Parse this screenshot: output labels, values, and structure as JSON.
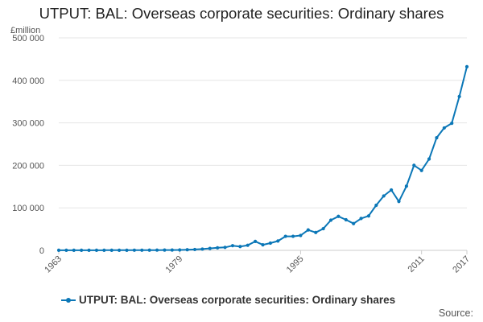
{
  "chart_data": {
    "type": "line",
    "title": "UTPUT: BAL: Overseas corporate securities: Ordinary shares",
    "unit_label": "£million",
    "ylim": [
      0,
      500000
    ],
    "yticks": [
      0,
      100000,
      200000,
      300000,
      400000,
      500000
    ],
    "ytick_labels": [
      "0",
      "100 000",
      "200 000",
      "300 000",
      "400 000",
      "500 000"
    ],
    "xlim": [
      1963,
      2017
    ],
    "xticks": [
      1963,
      1979,
      1995,
      2011,
      2017
    ],
    "xtick_labels": [
      "1963",
      "1979",
      "1995",
      "2011",
      "2017"
    ],
    "grid": true,
    "legend_position": "bottom",
    "series": [
      {
        "name": "UTPUT: BAL: Overseas corporate securities: Ordinary shares",
        "color": "#0b77b7",
        "x": [
          1963,
          1964,
          1965,
          1966,
          1967,
          1968,
          1969,
          1970,
          1971,
          1972,
          1973,
          1974,
          1975,
          1976,
          1977,
          1978,
          1979,
          1980,
          1981,
          1982,
          1983,
          1984,
          1985,
          1986,
          1987,
          1988,
          1989,
          1990,
          1991,
          1992,
          1993,
          1994,
          1995,
          1996,
          1997,
          1998,
          1999,
          2000,
          2001,
          2002,
          2003,
          2004,
          2005,
          2006,
          2007,
          2008,
          2009,
          2010,
          2011,
          2012,
          2013,
          2014,
          2015,
          2016,
          2017
        ],
        "values": [
          200,
          200,
          200,
          200,
          200,
          200,
          300,
          300,
          300,
          300,
          400,
          400,
          500,
          600,
          700,
          800,
          1000,
          1500,
          2000,
          3000,
          4500,
          6000,
          7000,
          11000,
          9000,
          12000,
          21000,
          13000,
          17000,
          22000,
          33000,
          33000,
          35000,
          48000,
          42000,
          51000,
          71000,
          80000,
          72000,
          63000,
          75000,
          81000,
          106000,
          128000,
          142000,
          115000,
          151000,
          200000,
          188000,
          215000,
          265000,
          288000,
          299000,
          362000,
          432000
        ]
      }
    ],
    "source_label": "Source:"
  }
}
